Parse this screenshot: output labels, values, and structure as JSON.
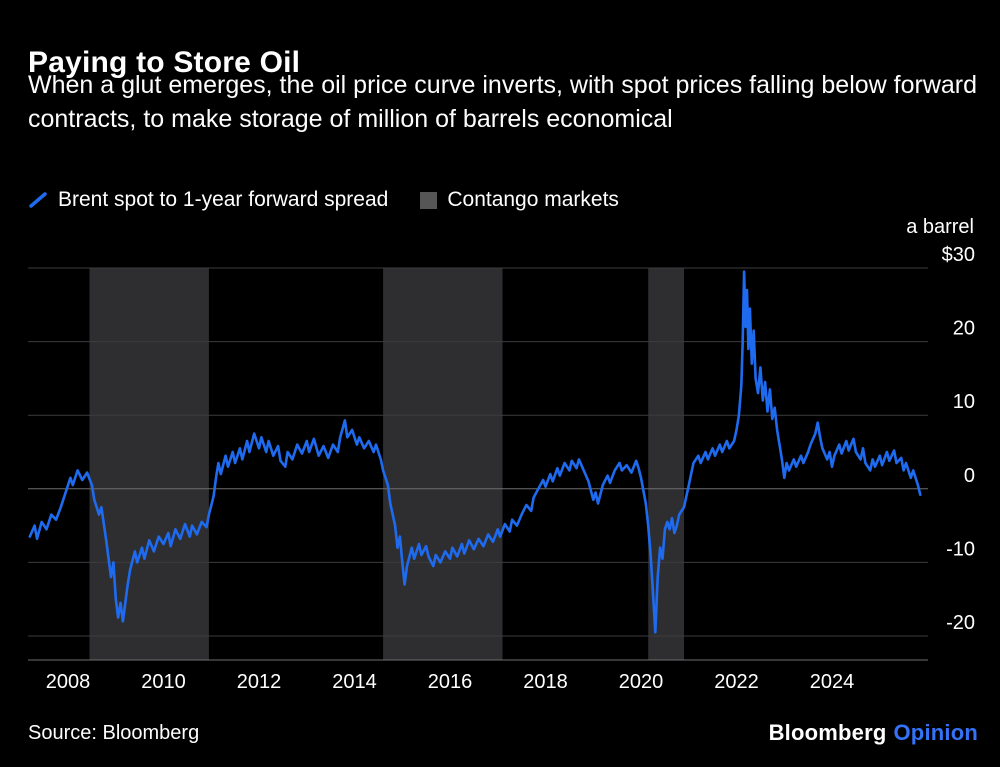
{
  "header": {
    "title": "Paying to Store Oil",
    "subtitle": "When a glut emerges, the oil price curve inverts, with spot prices falling below forward contracts, to make storage of million of barrels economical"
  },
  "legend": {
    "series_label": "Brent spot to 1-year forward spread",
    "contango_label": "Contango markets"
  },
  "axis": {
    "unit_label": "a barrel"
  },
  "footer": {
    "source": "Source: Bloomberg",
    "logo_primary": "Bloomberg",
    "logo_secondary": "Opinion"
  },
  "colors": {
    "background": "#000000",
    "line": "#1f6bf0",
    "band": "#2e2e30",
    "grid": "#3c3c3e",
    "zero_grid": "#6e6e70",
    "axis_line": "#6e6e70",
    "axis_text": "#ffffff",
    "legend_band_marker": "#565656",
    "logo_accent": "#3472f7"
  },
  "chart_data": {
    "type": "line",
    "title": "Paying to Store Oil",
    "ylabel": "a barrel",
    "xlabel": "",
    "grid": true,
    "legend_position": "top-left",
    "ylim": [
      -23.3,
      31.8
    ],
    "x_range": [
      2007.16,
      2025.9
    ],
    "y_axis": {
      "ticks": [
        30,
        20,
        10,
        0,
        -10,
        -20
      ],
      "tick_labels": [
        "$30",
        "20",
        "10",
        "0",
        "-10",
        "-20"
      ]
    },
    "x_axis": {
      "ticks": [
        2008,
        2010,
        2012,
        2014,
        2016,
        2018,
        2020,
        2022,
        2024
      ]
    },
    "contango_bands": [
      [
        2008.45,
        2010.95
      ],
      [
        2014.6,
        2017.1
      ],
      [
        2020.15,
        2020.9
      ]
    ],
    "series": [
      {
        "name": "Brent spot to 1-year forward spread",
        "points": [
          [
            2007.2,
            -6.5
          ],
          [
            2007.3,
            -5.0
          ],
          [
            2007.35,
            -6.8
          ],
          [
            2007.45,
            -4.5
          ],
          [
            2007.55,
            -5.5
          ],
          [
            2007.65,
            -3.5
          ],
          [
            2007.75,
            -4.2
          ],
          [
            2007.85,
            -2.5
          ],
          [
            2007.95,
            -0.5
          ],
          [
            2008.05,
            1.5
          ],
          [
            2008.1,
            0.5
          ],
          [
            2008.2,
            2.5
          ],
          [
            2008.3,
            1.2
          ],
          [
            2008.4,
            2.2
          ],
          [
            2008.5,
            0.5
          ],
          [
            2008.55,
            -1.5
          ],
          [
            2008.65,
            -3.5
          ],
          [
            2008.7,
            -2.5
          ],
          [
            2008.8,
            -7.0
          ],
          [
            2008.9,
            -12.0
          ],
          [
            2008.95,
            -10.0
          ],
          [
            2009.0,
            -15.0
          ],
          [
            2009.05,
            -17.5
          ],
          [
            2009.1,
            -15.5
          ],
          [
            2009.15,
            -18.0
          ],
          [
            2009.25,
            -13.0
          ],
          [
            2009.3,
            -11.0
          ],
          [
            2009.4,
            -8.5
          ],
          [
            2009.45,
            -10.0
          ],
          [
            2009.55,
            -8.0
          ],
          [
            2009.6,
            -9.5
          ],
          [
            2009.7,
            -7.0
          ],
          [
            2009.8,
            -8.5
          ],
          [
            2009.9,
            -6.5
          ],
          [
            2010.0,
            -7.5
          ],
          [
            2010.1,
            -6.0
          ],
          [
            2010.15,
            -7.8
          ],
          [
            2010.25,
            -5.5
          ],
          [
            2010.35,
            -6.8
          ],
          [
            2010.45,
            -4.8
          ],
          [
            2010.55,
            -6.5
          ],
          [
            2010.6,
            -5.0
          ],
          [
            2010.7,
            -6.2
          ],
          [
            2010.8,
            -4.5
          ],
          [
            2010.9,
            -5.2
          ],
          [
            2010.95,
            -3.5
          ],
          [
            2011.05,
            -1.0
          ],
          [
            2011.1,
            1.5
          ],
          [
            2011.15,
            3.5
          ],
          [
            2011.2,
            2.0
          ],
          [
            2011.3,
            4.5
          ],
          [
            2011.35,
            3.0
          ],
          [
            2011.45,
            5.0
          ],
          [
            2011.5,
            3.5
          ],
          [
            2011.6,
            5.5
          ],
          [
            2011.65,
            4.0
          ],
          [
            2011.75,
            6.5
          ],
          [
            2011.8,
            5.0
          ],
          [
            2011.9,
            7.5
          ],
          [
            2012.0,
            5.5
          ],
          [
            2012.05,
            7.0
          ],
          [
            2012.15,
            5.0
          ],
          [
            2012.2,
            6.5
          ],
          [
            2012.3,
            4.5
          ],
          [
            2012.4,
            5.8
          ],
          [
            2012.45,
            3.8
          ],
          [
            2012.55,
            3.0
          ],
          [
            2012.6,
            5.0
          ],
          [
            2012.7,
            4.0
          ],
          [
            2012.8,
            6.0
          ],
          [
            2012.9,
            4.8
          ],
          [
            2013.0,
            6.5
          ],
          [
            2013.05,
            5.0
          ],
          [
            2013.15,
            6.8
          ],
          [
            2013.25,
            4.5
          ],
          [
            2013.35,
            5.8
          ],
          [
            2013.45,
            4.2
          ],
          [
            2013.55,
            6.0
          ],
          [
            2013.65,
            5.0
          ],
          [
            2013.7,
            7.0
          ],
          [
            2013.8,
            9.3
          ],
          [
            2013.85,
            7.0
          ],
          [
            2013.95,
            8.0
          ],
          [
            2014.05,
            6.0
          ],
          [
            2014.1,
            7.0
          ],
          [
            2014.2,
            5.5
          ],
          [
            2014.3,
            6.5
          ],
          [
            2014.4,
            5.0
          ],
          [
            2014.45,
            6.0
          ],
          [
            2014.55,
            4.0
          ],
          [
            2014.6,
            2.5
          ],
          [
            2014.7,
            0.5
          ],
          [
            2014.75,
            -2.0
          ],
          [
            2014.85,
            -5.0
          ],
          [
            2014.9,
            -8.0
          ],
          [
            2014.95,
            -6.5
          ],
          [
            2015.0,
            -10.0
          ],
          [
            2015.05,
            -13.0
          ],
          [
            2015.1,
            -10.5
          ],
          [
            2015.2,
            -8.0
          ],
          [
            2015.25,
            -9.5
          ],
          [
            2015.35,
            -7.5
          ],
          [
            2015.4,
            -9.0
          ],
          [
            2015.5,
            -7.8
          ],
          [
            2015.55,
            -9.2
          ],
          [
            2015.65,
            -10.5
          ],
          [
            2015.7,
            -9.0
          ],
          [
            2015.8,
            -10.0
          ],
          [
            2015.9,
            -8.5
          ],
          [
            2016.0,
            -9.5
          ],
          [
            2016.05,
            -8.0
          ],
          [
            2016.15,
            -9.2
          ],
          [
            2016.25,
            -7.5
          ],
          [
            2016.3,
            -8.8
          ],
          [
            2016.4,
            -7.0
          ],
          [
            2016.5,
            -8.2
          ],
          [
            2016.6,
            -6.8
          ],
          [
            2016.7,
            -7.8
          ],
          [
            2016.8,
            -6.2
          ],
          [
            2016.9,
            -7.2
          ],
          [
            2017.0,
            -5.5
          ],
          [
            2017.05,
            -6.5
          ],
          [
            2017.15,
            -4.8
          ],
          [
            2017.25,
            -5.8
          ],
          [
            2017.3,
            -4.2
          ],
          [
            2017.4,
            -5.0
          ],
          [
            2017.5,
            -3.5
          ],
          [
            2017.6,
            -2.2
          ],
          [
            2017.7,
            -3.0
          ],
          [
            2017.75,
            -1.2
          ],
          [
            2017.85,
            0.0
          ],
          [
            2017.95,
            1.2
          ],
          [
            2018.0,
            0.3
          ],
          [
            2018.1,
            2.0
          ],
          [
            2018.15,
            1.0
          ],
          [
            2018.25,
            2.8
          ],
          [
            2018.3,
            1.8
          ],
          [
            2018.4,
            3.5
          ],
          [
            2018.5,
            2.5
          ],
          [
            2018.55,
            3.8
          ],
          [
            2018.65,
            2.8
          ],
          [
            2018.7,
            4.0
          ],
          [
            2018.8,
            2.5
          ],
          [
            2018.9,
            1.0
          ],
          [
            2019.0,
            -1.5
          ],
          [
            2019.05,
            -0.5
          ],
          [
            2019.1,
            -2.0
          ],
          [
            2019.2,
            0.5
          ],
          [
            2019.3,
            1.8
          ],
          [
            2019.35,
            0.8
          ],
          [
            2019.45,
            2.5
          ],
          [
            2019.55,
            3.5
          ],
          [
            2019.6,
            2.5
          ],
          [
            2019.7,
            3.2
          ],
          [
            2019.8,
            2.2
          ],
          [
            2019.9,
            3.8
          ],
          [
            2019.95,
            2.8
          ],
          [
            2020.0,
            1.5
          ],
          [
            2020.1,
            -2.0
          ],
          [
            2020.15,
            -5.0
          ],
          [
            2020.2,
            -9.0
          ],
          [
            2020.25,
            -14.0
          ],
          [
            2020.3,
            -19.5
          ],
          [
            2020.35,
            -12.0
          ],
          [
            2020.4,
            -8.0
          ],
          [
            2020.45,
            -9.5
          ],
          [
            2020.5,
            -5.5
          ],
          [
            2020.55,
            -4.5
          ],
          [
            2020.6,
            -5.5
          ],
          [
            2020.65,
            -4.0
          ],
          [
            2020.7,
            -6.0
          ],
          [
            2020.75,
            -5.0
          ],
          [
            2020.8,
            -3.5
          ],
          [
            2020.9,
            -2.5
          ],
          [
            2021.0,
            0.5
          ],
          [
            2021.05,
            2.0
          ],
          [
            2021.1,
            3.5
          ],
          [
            2021.2,
            4.5
          ],
          [
            2021.25,
            3.5
          ],
          [
            2021.35,
            5.0
          ],
          [
            2021.4,
            4.0
          ],
          [
            2021.5,
            5.5
          ],
          [
            2021.55,
            4.5
          ],
          [
            2021.65,
            6.0
          ],
          [
            2021.7,
            5.0
          ],
          [
            2021.8,
            6.5
          ],
          [
            2021.85,
            5.5
          ],
          [
            2021.95,
            6.5
          ],
          [
            2022.0,
            8.0
          ],
          [
            2022.05,
            10.0
          ],
          [
            2022.1,
            14.0
          ],
          [
            2022.13,
            20.0
          ],
          [
            2022.16,
            29.5
          ],
          [
            2022.19,
            22.0
          ],
          [
            2022.22,
            27.0
          ],
          [
            2022.25,
            19.0
          ],
          [
            2022.28,
            24.5
          ],
          [
            2022.32,
            17.0
          ],
          [
            2022.36,
            21.5
          ],
          [
            2022.4,
            15.0
          ],
          [
            2022.45,
            13.0
          ],
          [
            2022.5,
            16.5
          ],
          [
            2022.55,
            12.0
          ],
          [
            2022.6,
            14.5
          ],
          [
            2022.65,
            10.5
          ],
          [
            2022.7,
            13.5
          ],
          [
            2022.75,
            9.5
          ],
          [
            2022.8,
            11.0
          ],
          [
            2022.85,
            8.0
          ],
          [
            2022.9,
            6.0
          ],
          [
            2022.95,
            4.0
          ],
          [
            2023.0,
            1.5
          ],
          [
            2023.05,
            3.5
          ],
          [
            2023.1,
            2.5
          ],
          [
            2023.2,
            4.0
          ],
          [
            2023.25,
            3.0
          ],
          [
            2023.35,
            4.5
          ],
          [
            2023.4,
            3.5
          ],
          [
            2023.5,
            5.0
          ],
          [
            2023.55,
            6.0
          ],
          [
            2023.65,
            7.5
          ],
          [
            2023.7,
            9.0
          ],
          [
            2023.75,
            7.0
          ],
          [
            2023.8,
            5.5
          ],
          [
            2023.9,
            4.0
          ],
          [
            2023.95,
            5.0
          ],
          [
            2024.0,
            3.0
          ],
          [
            2024.05,
            4.5
          ],
          [
            2024.15,
            6.0
          ],
          [
            2024.2,
            4.8
          ],
          [
            2024.3,
            6.5
          ],
          [
            2024.35,
            5.2
          ],
          [
            2024.45,
            6.8
          ],
          [
            2024.5,
            5.0
          ],
          [
            2024.6,
            4.0
          ],
          [
            2024.65,
            5.5
          ],
          [
            2024.7,
            3.5
          ],
          [
            2024.8,
            2.5
          ],
          [
            2024.85,
            4.0
          ],
          [
            2024.9,
            3.0
          ],
          [
            2025.0,
            4.5
          ],
          [
            2025.05,
            3.2
          ],
          [
            2025.15,
            5.0
          ],
          [
            2025.2,
            3.8
          ],
          [
            2025.3,
            5.2
          ],
          [
            2025.35,
            3.5
          ],
          [
            2025.45,
            4.2
          ],
          [
            2025.5,
            2.5
          ],
          [
            2025.55,
            3.5
          ],
          [
            2025.65,
            1.5
          ],
          [
            2025.7,
            2.5
          ],
          [
            2025.8,
            0.5
          ],
          [
            2025.85,
            -0.8
          ]
        ]
      }
    ]
  }
}
